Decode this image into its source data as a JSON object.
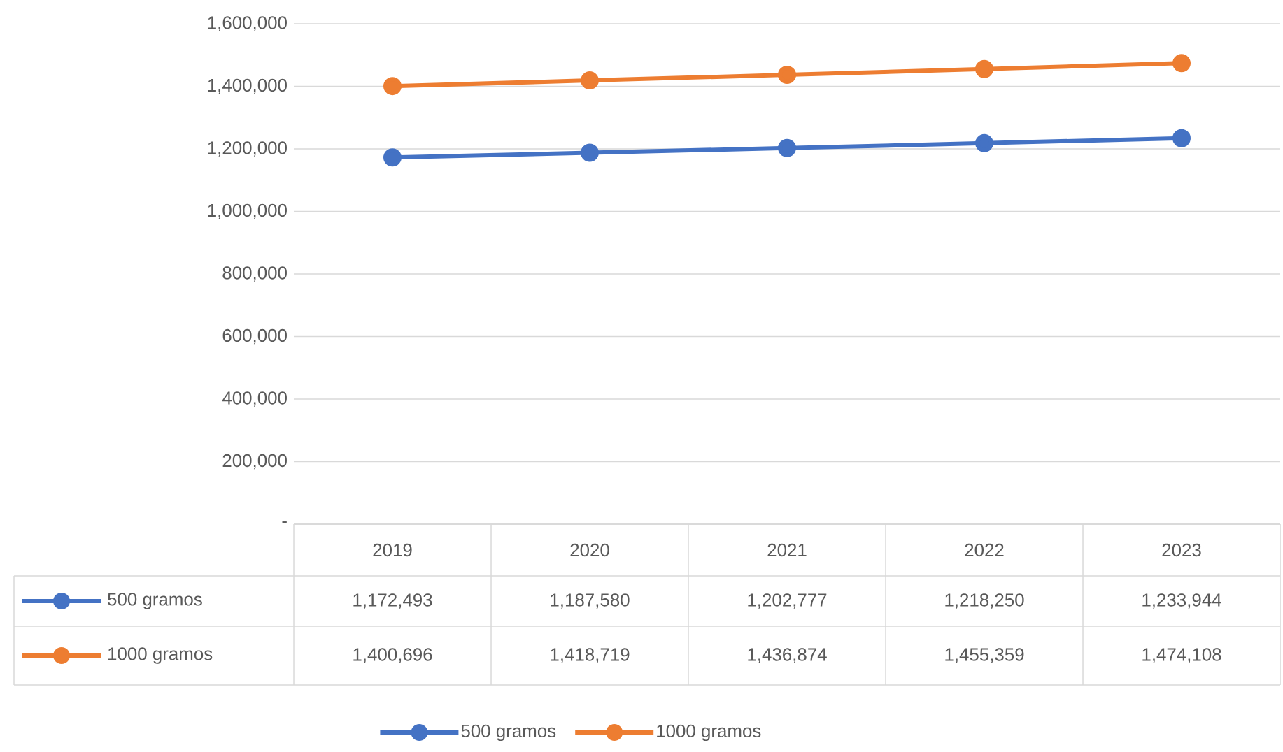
{
  "chart_data": {
    "type": "line",
    "categories": [
      "2019",
      "2020",
      "2021",
      "2022",
      "2023"
    ],
    "series": [
      {
        "name": "500 gramos",
        "color": "#4472c4",
        "values": [
          1172493,
          1187580,
          1202777,
          1218250,
          1233944
        ],
        "value_labels": [
          "1,172,493",
          "1,187,580",
          "1,202,777",
          "1,218,250",
          "1,233,944"
        ]
      },
      {
        "name": "1000 gramos",
        "color": "#ed7d31",
        "values": [
          1400696,
          1418719,
          1436874,
          1455359,
          1474108
        ],
        "value_labels": [
          "1,400,696",
          "1,418,719",
          "1,436,874",
          "1,455,359",
          "1,474,108"
        ]
      }
    ],
    "ylim": [
      0,
      1600000
    ],
    "yticks": [
      {
        "value": 0,
        "label": "-"
      },
      {
        "value": 200000,
        "label": "200,000"
      },
      {
        "value": 400000,
        "label": "400,000"
      },
      {
        "value": 600000,
        "label": "600,000"
      },
      {
        "value": 800000,
        "label": "800,000"
      },
      {
        "value": 1000000,
        "label": "1,000,000"
      },
      {
        "value": 1200000,
        "label": "1,200,000"
      },
      {
        "value": 1400000,
        "label": "1,400,000"
      },
      {
        "value": 1600000,
        "label": "1,600,000"
      }
    ],
    "grid": "y",
    "legend": "bottom",
    "marker": "circle",
    "line_style": "solid"
  }
}
